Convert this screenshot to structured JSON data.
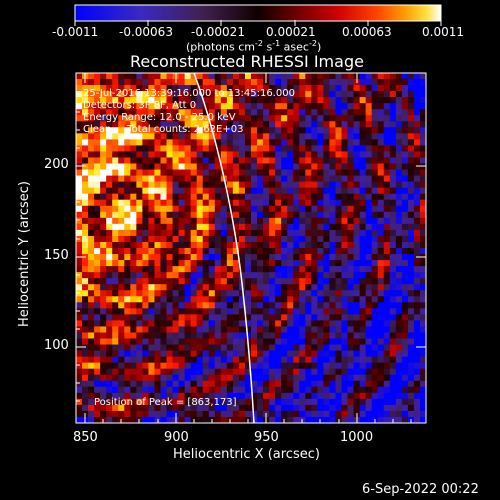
{
  "colorbar": {
    "tick_labels": [
      "-0.0011",
      "-0.00063",
      "-0.00021",
      "0.00021",
      "0.00063",
      "0.0011"
    ],
    "units_text": "(photons cm",
    "units_sup1": "-2",
    "units_mid": " s",
    "units_sup2": "-1",
    "units_end": " asec",
    "units_sup3": "-2",
    "units_close": ")"
  },
  "title": "Reconstructed RHESSI Image",
  "overlay": {
    "line1": "25-Jul-2016 13:39:16.000 to 13:45:16.000",
    "line2": "Detectors: 3F 8F, Att 0",
    "line3": "Energy Range: 12.0 - 25.0 keV",
    "line4": "Clean     Total counts: 2.62E+03",
    "peak": "Position of Peak = [863,173]"
  },
  "x_axis": {
    "label": "Heliocentric X (arcsec)",
    "ticks": [
      "850",
      "900",
      "950",
      "1000"
    ]
  },
  "y_axis": {
    "label": "Heliocentric Y (arcsec)",
    "ticks": [
      "100",
      "150",
      "200"
    ]
  },
  "footer": {
    "timestamp": "6-Sep-2022 00:22"
  },
  "image": {
    "colormap": [
      "#0000ff",
      "#4020a0",
      "#402060",
      "#200000",
      "#600000",
      "#b00000",
      "#ff2000",
      "#ff8000",
      "#ffe000",
      "#ffffff"
    ],
    "limb_line_color": "#ffffff"
  }
}
